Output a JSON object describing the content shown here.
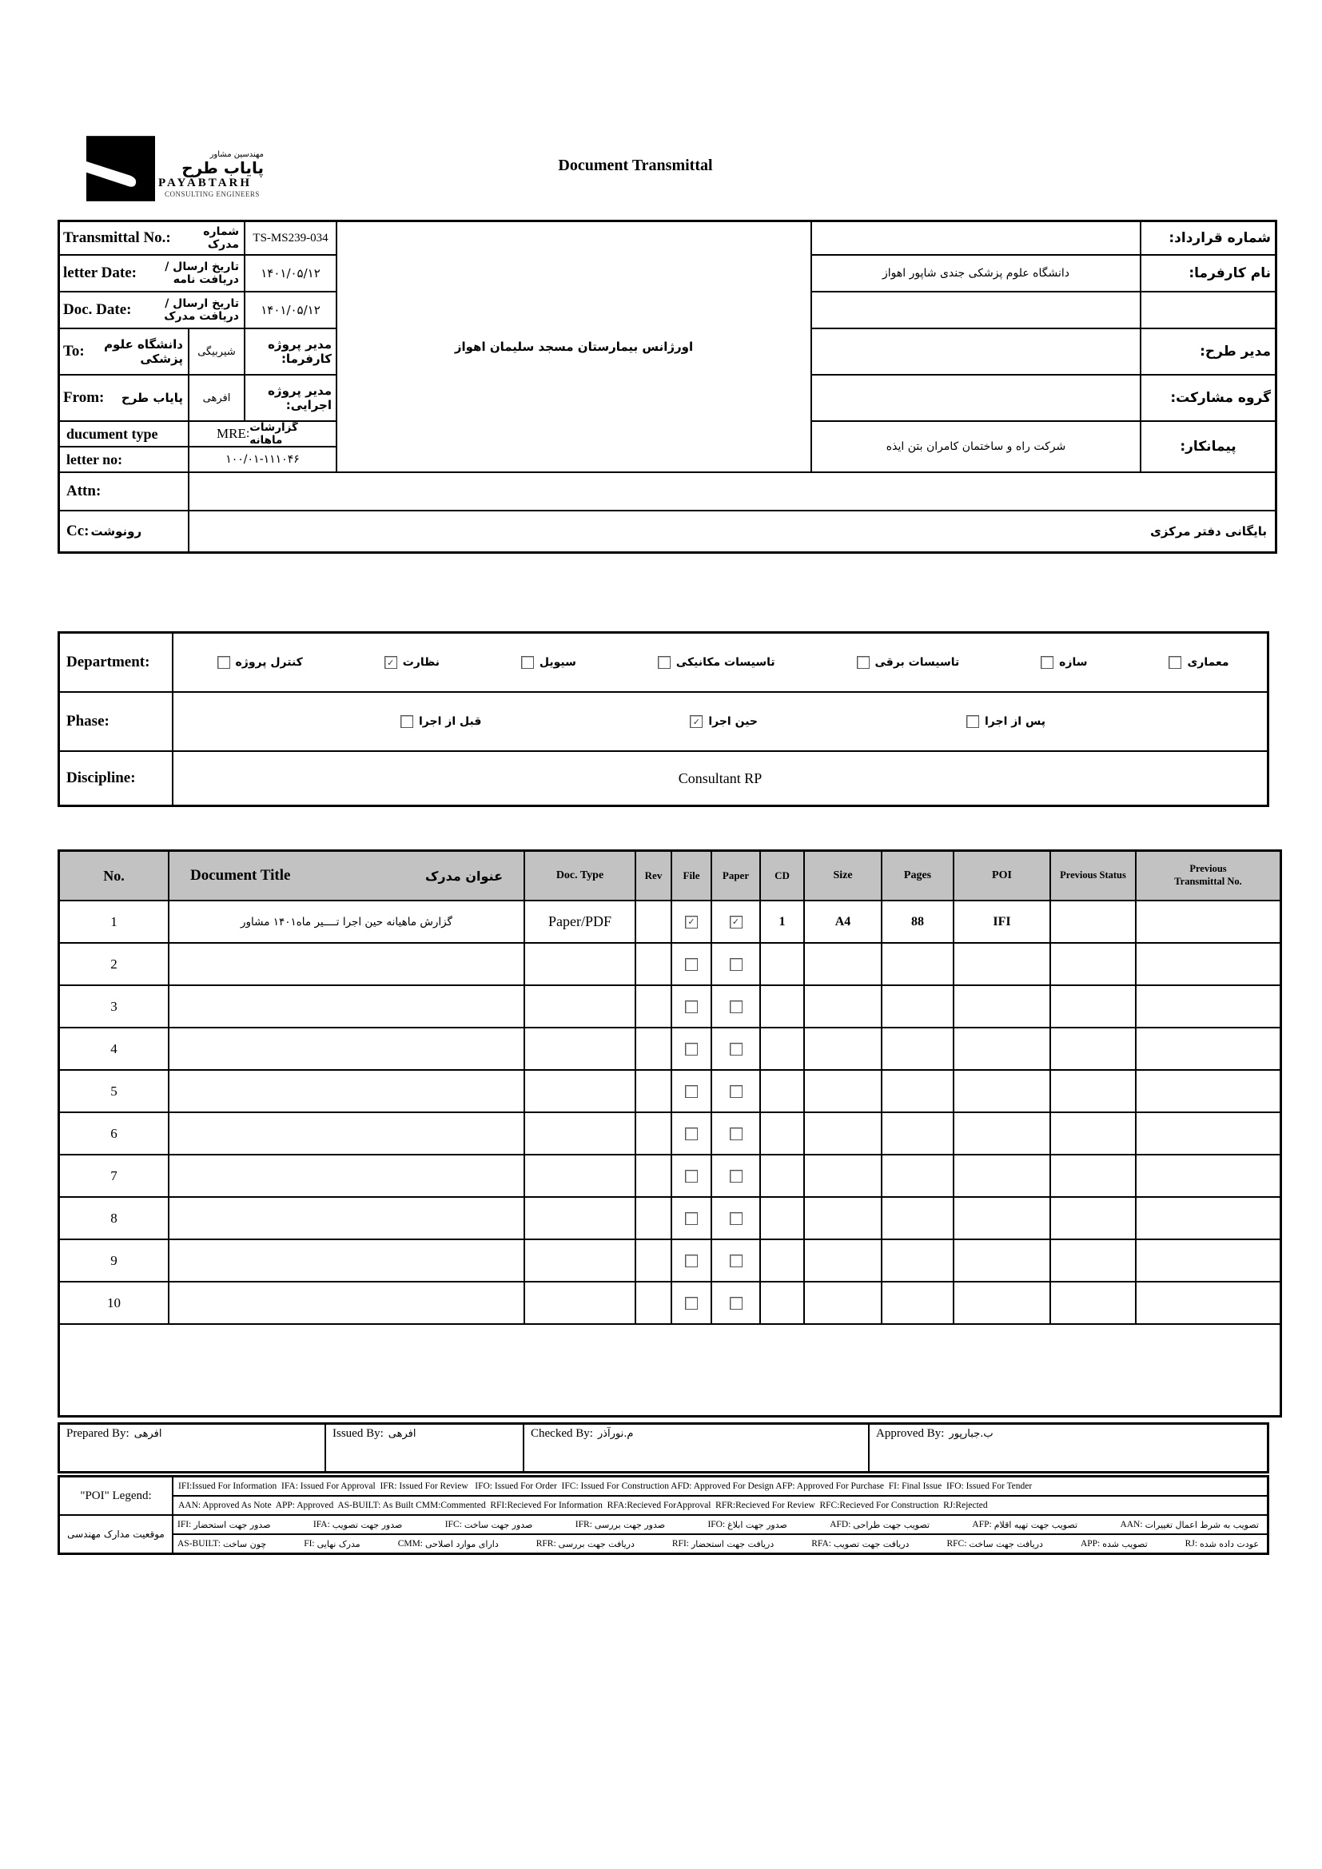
{
  "colors": {
    "table_header_bg": "#c2c2c2",
    "border": "#000000"
  },
  "header": {
    "title": "Document Transmittal",
    "logo": {
      "fa_tag": "مهندسین مشاور",
      "fa_name": "پایاب طرح",
      "en_name": "PAYABTARH",
      "en_sub": "CONSULTING ENGINEERS"
    }
  },
  "info": {
    "transmittal_no_label": "Transmittal No.:",
    "transmittal_no_fa": "شماره مدرک",
    "transmittal_no_value": "TS-MS239-034",
    "letter_date_label": "letter Date:",
    "letter_date_fa": "تاریخ ارسال /دریافت نامه",
    "letter_date_value": "۱۴۰۱/۰۵/۱۲",
    "doc_date_label": "Doc. Date:",
    "doc_date_fa": "تاریخ ارسال /دریافت مدرک",
    "doc_date_value": "۱۴۰۱/۰۵/۱۲",
    "to_label": "To:",
    "to_value_fa": "دانشگاه علوم پزشکی",
    "to_person": "شیربیگی",
    "client_pm_label": "مدیر پروژه کارفرما:",
    "from_label": "From:",
    "from_value_fa": "پایاب طرح",
    "from_person": "افرهی",
    "exec_pm_label": "مدیر پروژه اجرایی:",
    "doc_type_label": "ducument type",
    "doc_type_code": "MRE",
    "doc_type_sep": ":",
    "doc_type_fa": "گزارشات ماهانه",
    "letter_no_label": "letter no:",
    "letter_no_value": "۱۰۰/۰۱-۱۱۱۰۴۶",
    "attn_label": "Attn:",
    "cc_label": "Cc:",
    "cc_label_fa": "رونوشت",
    "cc_value": "بایگانی دفتر مرکزی",
    "project_cell": "اورژانس بیمارستان مسجد سلیمان اهواز",
    "right": {
      "contract_no_label": "شماره قرارداد:",
      "contract_no_value": "",
      "client_label": "نام کارفرما:",
      "client_value": "دانشگاه علوم پزشکی جندی شاپور اهواز",
      "design_manager_label": "مدیر طرح:",
      "design_manager_value": "",
      "partnership_label": "گروه مشارکت:",
      "partnership_value": "",
      "contractor_label": "پیمانکار:",
      "contractor_value": "شرکت راه و ساختمان کامران بتن ایذه"
    }
  },
  "classification": {
    "department_label": "Department:",
    "departments": [
      {
        "label": "معماری",
        "checked": false
      },
      {
        "label": "سازه",
        "checked": false
      },
      {
        "label": "تاسیسات برقی",
        "checked": false
      },
      {
        "label": "تاسیسات مکانیکی",
        "checked": false
      },
      {
        "label": "سیویل",
        "checked": false
      },
      {
        "label": "نظارت",
        "checked": true
      },
      {
        "label": "کنترل پروژه",
        "checked": false
      }
    ],
    "phase_label": "Phase:",
    "phases": [
      {
        "label": "پس از اجرا",
        "checked": false
      },
      {
        "label": "حین اجرا",
        "checked": true
      },
      {
        "label": "قبل از اجرا",
        "checked": false
      }
    ],
    "discipline_label": "Discipline:",
    "discipline_value": "Consultant RP"
  },
  "documents": {
    "columns": [
      "No.",
      "Document Title",
      "عنوان مدرک",
      "Doc. Type",
      "Rev",
      "File",
      "Paper",
      "CD",
      "Size",
      "Pages",
      "POI",
      "Previous Status",
      "Previous Transmittal No."
    ],
    "rows": [
      {
        "no": "1",
        "title": "گزارش ماهیانه حین اجرا تــــیر ماه۱۴۰۱ مشاور",
        "doc_type": "Paper/PDF",
        "rev": "",
        "file": true,
        "paper": true,
        "cd": "1",
        "size": "A4",
        "pages": "88",
        "poi": "IFI",
        "prev_status": "",
        "prev_transmittal": ""
      },
      {
        "no": "2",
        "title": "",
        "doc_type": "",
        "rev": "",
        "file": false,
        "paper": false,
        "cd": "",
        "size": "",
        "pages": "",
        "poi": "",
        "prev_status": "",
        "prev_transmittal": ""
      },
      {
        "no": "3",
        "title": "",
        "doc_type": "",
        "rev": "",
        "file": false,
        "paper": false,
        "cd": "",
        "size": "",
        "pages": "",
        "poi": "",
        "prev_status": "",
        "prev_transmittal": ""
      },
      {
        "no": "4",
        "title": "",
        "doc_type": "",
        "rev": "",
        "file": false,
        "paper": false,
        "cd": "",
        "size": "",
        "pages": "",
        "poi": "",
        "prev_status": "",
        "prev_transmittal": ""
      },
      {
        "no": "5",
        "title": "",
        "doc_type": "",
        "rev": "",
        "file": false,
        "paper": false,
        "cd": "",
        "size": "",
        "pages": "",
        "poi": "",
        "prev_status": "",
        "prev_transmittal": ""
      },
      {
        "no": "6",
        "title": "",
        "doc_type": "",
        "rev": "",
        "file": false,
        "paper": false,
        "cd": "",
        "size": "",
        "pages": "",
        "poi": "",
        "prev_status": "",
        "prev_transmittal": ""
      },
      {
        "no": "7",
        "title": "",
        "doc_type": "",
        "rev": "",
        "file": false,
        "paper": false,
        "cd": "",
        "size": "",
        "pages": "",
        "poi": "",
        "prev_status": "",
        "prev_transmittal": ""
      },
      {
        "no": "8",
        "title": "",
        "doc_type": "",
        "rev": "",
        "file": false,
        "paper": false,
        "cd": "",
        "size": "",
        "pages": "",
        "poi": "",
        "prev_status": "",
        "prev_transmittal": ""
      },
      {
        "no": "9",
        "title": "",
        "doc_type": "",
        "rev": "",
        "file": false,
        "paper": false,
        "cd": "",
        "size": "",
        "pages": "",
        "poi": "",
        "prev_status": "",
        "prev_transmittal": ""
      },
      {
        "no": "10",
        "title": "",
        "doc_type": "",
        "rev": "",
        "file": false,
        "paper": false,
        "cd": "",
        "size": "",
        "pages": "",
        "poi": "",
        "prev_status": "",
        "prev_transmittal": ""
      }
    ]
  },
  "signatures": {
    "prepared_label": "Prepared By:",
    "prepared_value": "افرهی",
    "issued_label": "Issued By:",
    "issued_value": "افرهی",
    "checked_label": "Checked By:",
    "checked_value": "م.نورآذر",
    "approved_label": "Approved By:",
    "approved_value": "ب.جبارپور"
  },
  "legend": {
    "poi_label": "\"POI\" Legend:",
    "status_label_fa": "موقعیت مدارک مهندسی",
    "en_line1": "IFI:Issued For Information  IFA: Issued For Approval  IFR: Issued For Review   IFO: Issued For Order  IFC: Issued For Construction AFD: Approved For Design AFP: Approved For Purchase  FI: Final Issue  IFO: Issued For Tender",
    "en_line2": "AAN: Approved As Note  APP: Approved  AS-BUILT: As Built CMM:Commented  RFI:Recieved For Information  RFA:Recieved ForApproval  RFR:Recieved For Review  RFC:Recieved For Construction  RJ:Rejected",
    "fa_line1": [
      {
        "code": "IFI",
        "text": "صدور جهت استحضار"
      },
      {
        "code": "IFA",
        "text": "صدور جهت تصویب"
      },
      {
        "code": "IFC",
        "text": "صدور جهت ساخت"
      },
      {
        "code": "IFR",
        "text": "صدور جهت بررسی"
      },
      {
        "code": "IFO",
        "text": "صدور جهت ابلاغ"
      },
      {
        "code": "AFD",
        "text": "تصویب جهت طراحی"
      },
      {
        "code": "AFP",
        "text": "تصویب جهت تهیه اقلام"
      },
      {
        "code": "AAN",
        "text": "تصویب به شرط اعمال تغییرات"
      }
    ],
    "fa_line2": [
      {
        "code": "AS-BUILT",
        "text": "چون ساخت"
      },
      {
        "code": "FI",
        "text": "مدرک نهایی"
      },
      {
        "code": "CMM",
        "text": "دارای موارد اصلاحی"
      },
      {
        "code": "RFR",
        "text": "دریافت جهت بررسی"
      },
      {
        "code": "RFI",
        "text": "دریافت جهت استحضار"
      },
      {
        "code": "RFA",
        "text": "دریافت جهت تصویب"
      },
      {
        "code": "RFC",
        "text": "دریافت جهت ساخت"
      },
      {
        "code": "APP",
        "text": "تصویب شده"
      },
      {
        "code": "RJ",
        "text": "عودت داده شده"
      }
    ]
  }
}
